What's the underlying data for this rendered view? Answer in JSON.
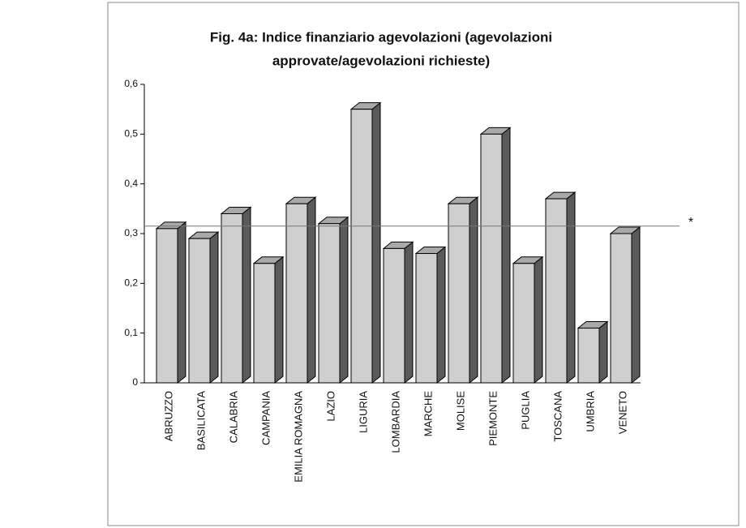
{
  "chart_data": {
    "type": "bar3d",
    "title": [
      "Fig. 4a: Indice finanziario agevolazioni (agevolazioni",
      "approvate/agevolazioni richieste)"
    ],
    "categories": [
      "ABRUZZO",
      "BASILICATA",
      "CALABRIA",
      "CAMPANIA",
      "EMILIA ROMAGNA",
      "LAZIO",
      "LIGURIA",
      "LOMBARDIA",
      "MARCHE",
      "MOLISE",
      "PIEMONTE",
      "PUGLIA",
      "TOSCANA",
      "UMBRIA",
      "VENETO"
    ],
    "values": [
      0.31,
      0.29,
      0.34,
      0.24,
      0.36,
      0.32,
      0.55,
      0.27,
      0.26,
      0.36,
      0.5,
      0.24,
      0.37,
      0.11,
      0.3
    ],
    "color": "#cfcfcf",
    "ylim": [
      0,
      0.6
    ],
    "yticks": [
      0,
      {
        "value": 0.1,
        "label": "0,1"
      },
      {
        "value": 0.2,
        "label": "0,2"
      },
      {
        "value": 0.3,
        "label": "0,3"
      },
      {
        "value": 0.4,
        "label": "0,4"
      },
      {
        "value": 0.5,
        "label": "0,5"
      },
      {
        "value": 0.6,
        "label": "0,6"
      }
    ],
    "reference_line": {
      "value": 0.315,
      "label": "*"
    }
  }
}
